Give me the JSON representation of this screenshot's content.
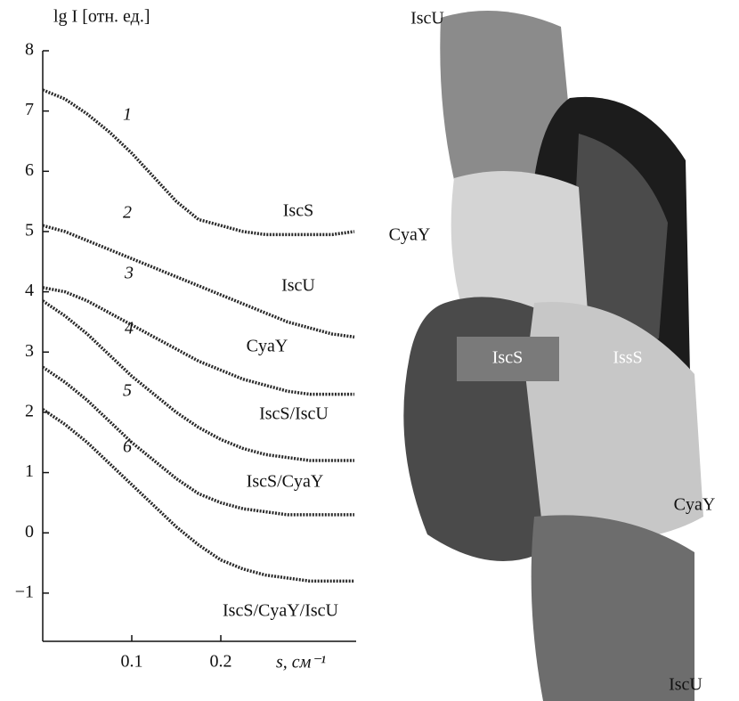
{
  "chart_data": {
    "type": "line",
    "y_label": "lg I [отн. ед.]",
    "x_label": "s, см⁻¹",
    "x": [
      0.0,
      0.025,
      0.05,
      0.075,
      0.1,
      0.125,
      0.15,
      0.175,
      0.2,
      0.225,
      0.25,
      0.275,
      0.3,
      0.325,
      0.35
    ],
    "series": [
      {
        "name": "IscS",
        "number": "1",
        "color": "#2a2a2a",
        "values": [
          7.35,
          7.2,
          6.95,
          6.65,
          6.3,
          5.9,
          5.5,
          5.2,
          5.1,
          5.0,
          4.95,
          4.95,
          4.95,
          4.95,
          5.0
        ]
      },
      {
        "name": "IscU",
        "number": "2",
        "color": "#2a2a2a",
        "values": [
          5.1,
          5.0,
          4.85,
          4.7,
          4.55,
          4.4,
          4.25,
          4.1,
          3.95,
          3.8,
          3.65,
          3.5,
          3.4,
          3.3,
          3.25
        ]
      },
      {
        "name": "CyaY",
        "number": "3",
        "color": "#2a2a2a",
        "values": [
          4.07,
          4.0,
          3.85,
          3.65,
          3.45,
          3.25,
          3.05,
          2.85,
          2.7,
          2.55,
          2.45,
          2.35,
          2.3,
          2.3,
          2.3
        ]
      },
      {
        "name": "IscS/IscU",
        "number": "4",
        "color": "#2a2a2a",
        "values": [
          3.85,
          3.6,
          3.3,
          2.95,
          2.6,
          2.3,
          2.0,
          1.75,
          1.55,
          1.4,
          1.3,
          1.25,
          1.2,
          1.2,
          1.2
        ]
      },
      {
        "name": "IscS/CyaY",
        "number": "5",
        "color": "#2a2a2a",
        "values": [
          2.75,
          2.5,
          2.2,
          1.85,
          1.5,
          1.2,
          0.9,
          0.65,
          0.5,
          0.4,
          0.35,
          0.3,
          0.3,
          0.3,
          0.3
        ]
      },
      {
        "name": "IscS/CyaY/IscU",
        "number": "6",
        "color": "#2a2a2a",
        "values": [
          2.05,
          1.8,
          1.5,
          1.15,
          0.8,
          0.45,
          0.1,
          -0.2,
          -0.45,
          -0.6,
          -0.7,
          -0.75,
          -0.8,
          -0.8,
          -0.8
        ]
      }
    ],
    "xlim": [
      0,
      0.352
    ],
    "ylim": [
      -1.8,
      8
    ],
    "xticks": [
      0.1,
      0.2
    ],
    "yticks": [
      {
        "value": -1,
        "label": "−1"
      },
      0,
      1,
      2,
      3,
      4,
      5,
      6,
      7,
      8
    ],
    "grid": false,
    "image_labels": [
      "IscU",
      "CyaY",
      "IscS",
      "IssS",
      "CyaY",
      "IscU"
    ]
  }
}
